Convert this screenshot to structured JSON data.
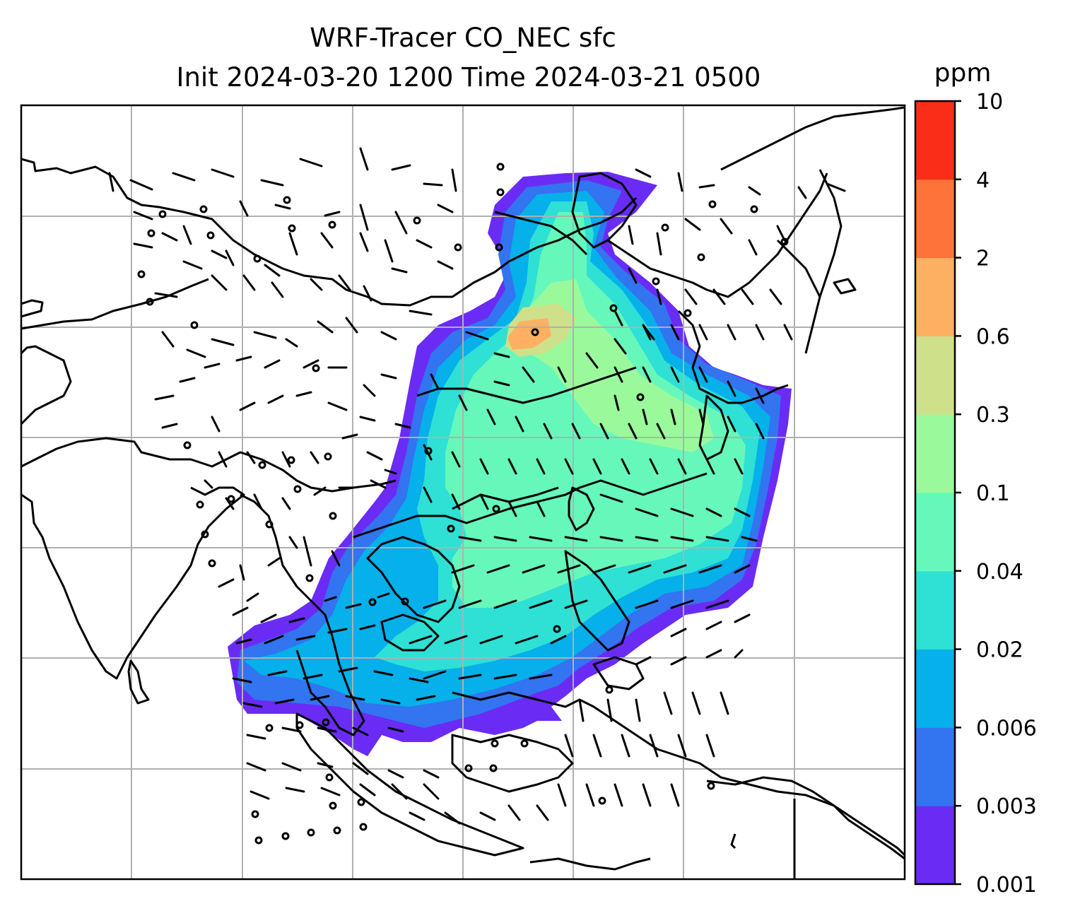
{
  "chart_data": {
    "type": "heatmap",
    "title": "WRF-Tracer CO_NEC sfc",
    "subtitle": "Init 2024-03-20 1200 Time 2024-03-21 0500",
    "colorbar": {
      "unit": "ppm",
      "levels": [
        "0.001",
        "0.003",
        "0.006",
        "0.02",
        "0.04",
        "0.1",
        "0.3",
        "0.6",
        "2",
        "4",
        "10"
      ],
      "colors": [
        "#6a2cf5",
        "#3374f0",
        "#06b0ea",
        "#2fe0d4",
        "#66f8bb",
        "#9afa9b",
        "#cfe08a",
        "#fdb062",
        "#fd7339",
        "#fa2d19"
      ]
    },
    "grid": true,
    "field_description_levels": {
      "background": "#ffffff",
      "coastline_color": "#000000",
      "gridline_color": "#b0b0b0"
    }
  }
}
